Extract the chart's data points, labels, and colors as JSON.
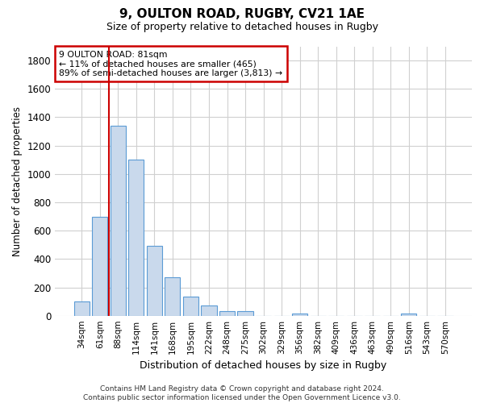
{
  "title_line1": "9, OULTON ROAD, RUGBY, CV21 1AE",
  "title_line2": "Size of property relative to detached houses in Rugby",
  "xlabel": "Distribution of detached houses by size in Rugby",
  "ylabel": "Number of detached properties",
  "categories": [
    "34sqm",
    "61sqm",
    "88sqm",
    "114sqm",
    "141sqm",
    "168sqm",
    "195sqm",
    "222sqm",
    "248sqm",
    "275sqm",
    "302sqm",
    "329sqm",
    "356sqm",
    "382sqm",
    "409sqm",
    "436sqm",
    "463sqm",
    "490sqm",
    "516sqm",
    "543sqm",
    "570sqm"
  ],
  "values": [
    100,
    700,
    1340,
    1100,
    490,
    270,
    135,
    70,
    35,
    35,
    0,
    0,
    15,
    0,
    0,
    0,
    0,
    0,
    15,
    0,
    0
  ],
  "bar_color": "#c9d9ec",
  "bar_edge_color": "#5b9bd5",
  "grid_color": "#d0d0d0",
  "background_color": "#ffffff",
  "annotation_box_color": "#cc0000",
  "property_line_color": "#cc0000",
  "property_index": 2,
  "annotation_line1": "9 OULTON ROAD: 81sqm",
  "annotation_line2": "← 11% of detached houses are smaller (465)",
  "annotation_line3": "89% of semi-detached houses are larger (3,813) →",
  "footer_text": "Contains HM Land Registry data © Crown copyright and database right 2024.\nContains public sector information licensed under the Open Government Licence v3.0.",
  "ylim": [
    0,
    1900
  ],
  "yticks": [
    0,
    200,
    400,
    600,
    800,
    1000,
    1200,
    1400,
    1600,
    1800
  ]
}
